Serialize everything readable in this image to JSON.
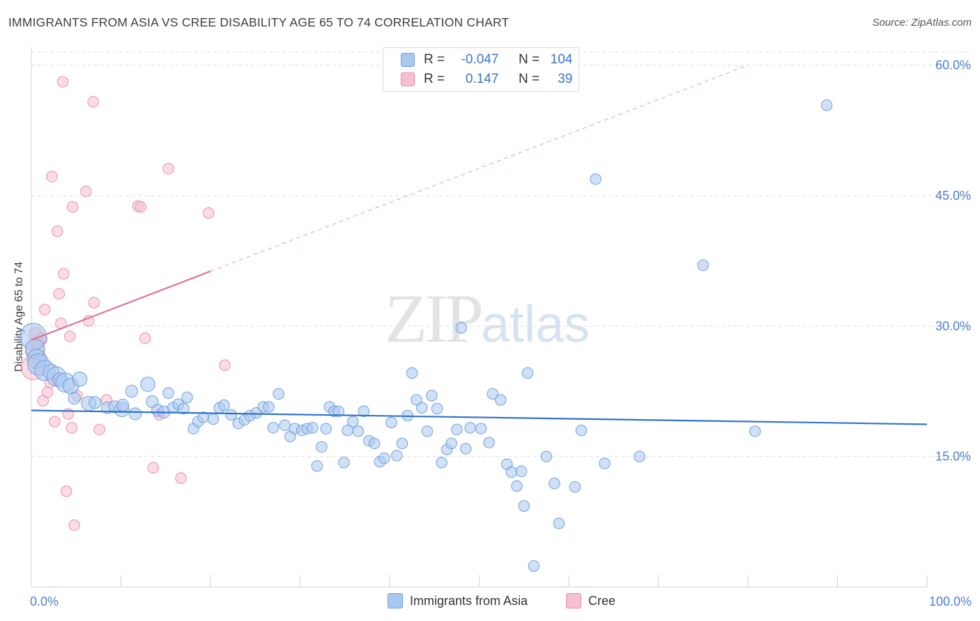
{
  "title": "IMMIGRANTS FROM ASIA VS CREE DISABILITY AGE 65 TO 74 CORRELATION CHART",
  "source": "Source: ZipAtlas.com",
  "watermark": {
    "zip": "ZIP",
    "atlas": "atlas"
  },
  "legend_top": {
    "rows": [
      {
        "r_label": "R =",
        "r_value": "-0.047",
        "n_label": "N =",
        "n_value": "104"
      },
      {
        "r_label": "R =",
        "r_value": "0.147",
        "n_label": "N =",
        "n_value": "39"
      }
    ]
  },
  "colors": {
    "asia_fill": "#a9c8f0",
    "asia_stroke": "#6f9fdc",
    "asia_line": "#2f72cc",
    "cree_fill": "#f7bfcf",
    "cree_stroke": "#e98fab",
    "cree_line": "#e0709a",
    "grid": "#dedede",
    "axis_text": "#4a7fd4"
  },
  "chart_data": {
    "type": "scatter",
    "title": "IMMIGRANTS FROM ASIA VS CREE DISABILITY AGE 65 TO 74 CORRELATION CHART",
    "xlabel": "",
    "ylabel": "Disability Age 65 to 74",
    "xlim": [
      0,
      100
    ],
    "ylim": [
      0,
      61.5
    ],
    "x_tick_labels": [
      "0.0%",
      "100.0%"
    ],
    "y_ticks": [
      15,
      30,
      45,
      60
    ],
    "y_tick_labels": [
      "15.0%",
      "30.0%",
      "45.0%",
      "60.0%"
    ],
    "grid": true,
    "legend": [
      "Immigrants from Asia",
      "Cree"
    ],
    "series": [
      {
        "name": "Immigrants from Asia",
        "R": -0.047,
        "N": 104,
        "trend": {
          "x": [
            0,
            100
          ],
          "y": [
            20.3,
            18.7
          ]
        },
        "points": [
          [
            0.2,
            28.8,
            2.2
          ],
          [
            0.4,
            27.4,
            1.6
          ],
          [
            0.6,
            26.2,
            1.6
          ],
          [
            0.8,
            25.6,
            1.8
          ],
          [
            1.5,
            24.9,
            1.7
          ],
          [
            2.2,
            24.7,
            1.3
          ],
          [
            2.8,
            24.2,
            1.6
          ],
          [
            3.2,
            23.8,
            1.2
          ],
          [
            3.8,
            23.5,
            1.6
          ],
          [
            4.4,
            23.1,
            1.3
          ],
          [
            5.4,
            23.9,
            1.2
          ],
          [
            4.8,
            21.7,
            1.0
          ],
          [
            6.4,
            21.1,
            1.2
          ],
          [
            7.1,
            21.2,
            1.0
          ],
          [
            8.5,
            20.6,
            1.0
          ],
          [
            9.3,
            20.7,
            1.0
          ],
          [
            10.1,
            20.4,
            1.2
          ],
          [
            10.2,
            20.9,
            1.0
          ],
          [
            11.2,
            22.5,
            1.0
          ],
          [
            11.6,
            19.9,
            1.0
          ],
          [
            13.0,
            23.3,
            1.2
          ],
          [
            13.5,
            21.3,
            1.0
          ],
          [
            14.1,
            20.3,
            1.0
          ],
          [
            14.8,
            20.1,
            1.0
          ],
          [
            15.3,
            22.3,
            0.9
          ],
          [
            15.8,
            20.6,
            0.9
          ],
          [
            16.4,
            21.0,
            0.9
          ],
          [
            17.0,
            20.5,
            0.9
          ],
          [
            17.4,
            21.8,
            0.9
          ],
          [
            18.1,
            18.2,
            0.9
          ],
          [
            18.6,
            19.0,
            0.9
          ],
          [
            19.2,
            19.5,
            0.9
          ],
          [
            20.3,
            19.3,
            0.9
          ],
          [
            21.0,
            20.6,
            0.9
          ],
          [
            21.5,
            20.9,
            0.9
          ],
          [
            22.3,
            19.8,
            0.9
          ],
          [
            23.1,
            18.8,
            0.9
          ],
          [
            23.8,
            19.2,
            0.9
          ],
          [
            24.4,
            19.7,
            0.9
          ],
          [
            25.1,
            20.0,
            0.9
          ],
          [
            25.9,
            20.7,
            0.9
          ],
          [
            26.5,
            20.7,
            0.9
          ],
          [
            27.0,
            18.3,
            0.9
          ],
          [
            27.6,
            22.2,
            0.9
          ],
          [
            28.3,
            18.6,
            0.9
          ],
          [
            28.9,
            17.3,
            0.9
          ],
          [
            29.4,
            18.2,
            0.9
          ],
          [
            30.2,
            18.0,
            0.9
          ],
          [
            30.8,
            18.2,
            0.9
          ],
          [
            31.4,
            18.3,
            0.9
          ],
          [
            31.9,
            13.9,
            0.9
          ],
          [
            32.4,
            16.1,
            0.9
          ],
          [
            32.9,
            18.2,
            0.9
          ],
          [
            33.3,
            20.7,
            0.9
          ],
          [
            33.8,
            20.2,
            0.9
          ],
          [
            34.3,
            20.2,
            0.9
          ],
          [
            34.9,
            14.3,
            0.9
          ],
          [
            35.3,
            18.0,
            0.9
          ],
          [
            35.9,
            19.0,
            0.9
          ],
          [
            36.5,
            17.9,
            0.9
          ],
          [
            37.1,
            20.2,
            0.9
          ],
          [
            37.7,
            16.8,
            0.9
          ],
          [
            38.3,
            16.5,
            0.9
          ],
          [
            38.9,
            14.4,
            0.9
          ],
          [
            39.4,
            14.8,
            0.9
          ],
          [
            40.2,
            18.9,
            0.9
          ],
          [
            40.8,
            15.1,
            0.9
          ],
          [
            41.4,
            16.5,
            0.9
          ],
          [
            42.0,
            19.7,
            0.9
          ],
          [
            42.5,
            24.6,
            0.9
          ],
          [
            43.0,
            21.5,
            0.9
          ],
          [
            43.6,
            20.6,
            0.9
          ],
          [
            44.2,
            17.9,
            0.9
          ],
          [
            44.7,
            22.0,
            0.9
          ],
          [
            45.3,
            20.5,
            0.9
          ],
          [
            45.8,
            14.3,
            0.9
          ],
          [
            46.4,
            15.8,
            0.9
          ],
          [
            46.9,
            16.5,
            0.9
          ],
          [
            47.5,
            18.1,
            0.9
          ],
          [
            48.0,
            29.8,
            0.9
          ],
          [
            48.5,
            15.9,
            0.9
          ],
          [
            49.0,
            18.3,
            0.9
          ],
          [
            50.2,
            18.2,
            0.9
          ],
          [
            51.1,
            16.6,
            0.9
          ],
          [
            51.5,
            22.2,
            0.9
          ],
          [
            52.4,
            21.5,
            0.9
          ],
          [
            53.1,
            14.1,
            0.9
          ],
          [
            53.6,
            13.2,
            0.9
          ],
          [
            54.2,
            11.6,
            0.9
          ],
          [
            54.7,
            13.3,
            0.9
          ],
          [
            55.0,
            9.3,
            0.9
          ],
          [
            55.4,
            24.6,
            0.9
          ],
          [
            56.1,
            2.4,
            0.9
          ],
          [
            57.5,
            15.0,
            0.9
          ],
          [
            58.4,
            11.9,
            0.9
          ],
          [
            58.9,
            7.3,
            0.9
          ],
          [
            60.7,
            11.5,
            0.9
          ],
          [
            61.4,
            18.0,
            0.9
          ],
          [
            63.0,
            46.9,
            0.9
          ],
          [
            64.0,
            14.2,
            0.9
          ],
          [
            67.9,
            15.0,
            0.9
          ],
          [
            75.0,
            37.0,
            0.9
          ],
          [
            80.8,
            17.9,
            0.9
          ],
          [
            88.8,
            55.4,
            0.9
          ]
        ]
      },
      {
        "name": "Cree",
        "R": 0.147,
        "N": 39,
        "trend": {
          "x": [
            0,
            20
          ],
          "y": [
            28.4,
            36.3
          ]
        },
        "trend_extended": {
          "x": [
            20,
            80
          ],
          "y": [
            36.3,
            60.0
          ]
        },
        "points": [
          [
            0.2,
            25.2,
            2.0
          ],
          [
            0.4,
            27.2,
            1.6
          ],
          [
            0.5,
            29.0,
            1.2
          ],
          [
            0.7,
            28.1,
            1.1
          ],
          [
            0.9,
            26.1,
            1.0
          ],
          [
            1.1,
            28.5,
            1.0
          ],
          [
            1.3,
            21.4,
            0.9
          ],
          [
            1.5,
            31.9,
            0.9
          ],
          [
            1.8,
            22.4,
            0.9
          ],
          [
            2.1,
            23.5,
            0.9
          ],
          [
            2.3,
            47.2,
            0.9
          ],
          [
            2.6,
            19.0,
            0.9
          ],
          [
            2.9,
            40.9,
            0.9
          ],
          [
            3.1,
            33.7,
            0.9
          ],
          [
            3.3,
            30.3,
            0.9
          ],
          [
            3.5,
            58.1,
            0.9
          ],
          [
            3.6,
            36.0,
            0.9
          ],
          [
            3.9,
            11.0,
            0.9
          ],
          [
            4.1,
            19.9,
            0.9
          ],
          [
            4.3,
            28.8,
            0.9
          ],
          [
            4.5,
            18.3,
            0.9
          ],
          [
            4.6,
            43.7,
            0.9
          ],
          [
            4.8,
            7.1,
            0.9
          ],
          [
            5.1,
            22.0,
            0.9
          ],
          [
            6.1,
            45.5,
            0.9
          ],
          [
            6.4,
            30.6,
            0.9
          ],
          [
            6.9,
            55.8,
            0.9
          ],
          [
            7.0,
            32.7,
            0.9
          ],
          [
            7.6,
            18.1,
            0.9
          ],
          [
            8.4,
            21.5,
            0.9
          ],
          [
            11.9,
            43.8,
            0.9
          ],
          [
            12.2,
            43.7,
            0.9
          ],
          [
            12.7,
            28.6,
            0.9
          ],
          [
            13.6,
            13.7,
            0.9
          ],
          [
            14.3,
            19.8,
            0.9
          ],
          [
            15.3,
            48.1,
            0.9
          ],
          [
            16.7,
            12.5,
            0.9
          ],
          [
            19.8,
            43.0,
            0.9
          ],
          [
            21.6,
            25.5,
            0.9
          ]
        ]
      }
    ]
  }
}
